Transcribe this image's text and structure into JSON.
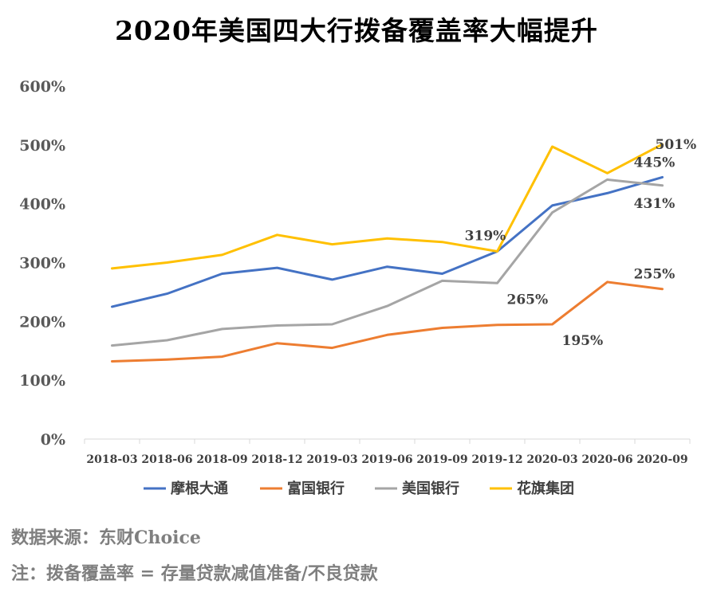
{
  "chart_data": {
    "type": "line",
    "title": "2020年美国四大行拨备覆盖率大幅提升",
    "categories": [
      "2018-03",
      "2018-06",
      "2018-09",
      "2018-12",
      "2019-03",
      "2019-06",
      "2019-09",
      "2019-12",
      "2020-03",
      "2020-06",
      "2020-09"
    ],
    "ylim": [
      0,
      600
    ],
    "yticks": [
      0,
      100,
      200,
      300,
      400,
      500,
      600
    ],
    "ytick_labels": [
      "0%",
      "100%",
      "200%",
      "300%",
      "400%",
      "500%",
      "600%"
    ],
    "grid": false,
    "legend_position": "bottom",
    "series": [
      {
        "name": "摩根大通",
        "color": "#4472C4",
        "values": [
          225,
          247,
          281,
          291,
          271,
          293,
          281,
          319,
          397,
          418,
          445
        ]
      },
      {
        "name": "富国银行",
        "color": "#ED7D31",
        "values": [
          132,
          135,
          140,
          163,
          155,
          177,
          189,
          194,
          195,
          267,
          255
        ]
      },
      {
        "name": "美国银行",
        "color": "#A5A5A5",
        "values": [
          159,
          168,
          187,
          193,
          195,
          226,
          269,
          265,
          385,
          441,
          431
        ]
      },
      {
        "name": "花旗集团",
        "color": "#FFC000",
        "values": [
          290,
          300,
          313,
          347,
          331,
          341,
          335,
          319,
          497,
          452,
          501
        ]
      }
    ],
    "annotations": [
      {
        "text": "319%",
        "series": 0,
        "index": 7,
        "anchor": "above-left"
      },
      {
        "text": "265%",
        "series": 2,
        "index": 7,
        "anchor": "below-right"
      },
      {
        "text": "195%",
        "series": 1,
        "index": 8,
        "anchor": "below-right"
      },
      {
        "text": "255%",
        "series": 1,
        "index": 10,
        "anchor": "above"
      },
      {
        "text": "445%",
        "series": 0,
        "index": 10,
        "anchor": "above"
      },
      {
        "text": "431%",
        "series": 2,
        "index": 10,
        "anchor": "below"
      },
      {
        "text": "501%",
        "series": 3,
        "index": 10,
        "anchor": "right"
      }
    ]
  },
  "footer": {
    "source": "数据来源：东财Choice",
    "note": "注：拨备覆盖率 = 存量贷款减值准备/不良贷款"
  }
}
